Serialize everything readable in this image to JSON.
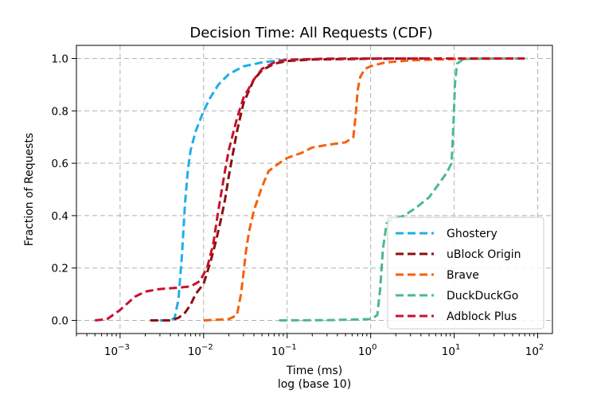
{
  "chart_data": {
    "type": "line",
    "title": "Decision Time: All Requests (CDF)",
    "xlabel": "Time (ms)",
    "xlabel_sub": "log (base 10)",
    "ylabel": "Fraction of Requests",
    "xscale": "log",
    "xlim": [
      0.0003,
      150
    ],
    "ylim": [
      -0.05,
      1.05
    ],
    "grid": true,
    "legend_position": "lower-right",
    "x_ticks": [
      {
        "value": 0.001,
        "base": "10",
        "exp": "−3"
      },
      {
        "value": 0.01,
        "base": "10",
        "exp": "−2"
      },
      {
        "value": 0.1,
        "base": "10",
        "exp": "−1"
      },
      {
        "value": 1,
        "base": "10",
        "exp": "0"
      },
      {
        "value": 10,
        "base": "10",
        "exp": "1"
      },
      {
        "value": 100,
        "base": "10",
        "exp": "2"
      }
    ],
    "y_ticks": [
      "0.0",
      "0.2",
      "0.4",
      "0.6",
      "0.8",
      "1.0"
    ],
    "series": [
      {
        "name": "Ghostery",
        "color": "#1eaee8",
        "points": [
          [
            0.003,
            0
          ],
          [
            0.004,
            0
          ],
          [
            0.0045,
            0.01
          ],
          [
            0.005,
            0.08
          ],
          [
            0.0055,
            0.25
          ],
          [
            0.006,
            0.45
          ],
          [
            0.0065,
            0.58
          ],
          [
            0.007,
            0.65
          ],
          [
            0.008,
            0.72
          ],
          [
            0.01,
            0.8
          ],
          [
            0.012,
            0.85
          ],
          [
            0.015,
            0.9
          ],
          [
            0.02,
            0.94
          ],
          [
            0.03,
            0.97
          ],
          [
            0.05,
            0.985
          ],
          [
            0.08,
            0.993
          ],
          [
            0.15,
            0.997
          ],
          [
            0.3,
            0.999
          ],
          [
            1,
            1
          ]
        ]
      },
      {
        "name": "uBlock Origin",
        "color": "#8b0f0f",
        "points": [
          [
            0.0023,
            0
          ],
          [
            0.004,
            0
          ],
          [
            0.005,
            0.01
          ],
          [
            0.006,
            0.03
          ],
          [
            0.007,
            0.06
          ],
          [
            0.008,
            0.1
          ],
          [
            0.01,
            0.14
          ],
          [
            0.012,
            0.22
          ],
          [
            0.014,
            0.3
          ],
          [
            0.016,
            0.38
          ],
          [
            0.018,
            0.46
          ],
          [
            0.02,
            0.55
          ],
          [
            0.025,
            0.72
          ],
          [
            0.03,
            0.83
          ],
          [
            0.04,
            0.92
          ],
          [
            0.05,
            0.955
          ],
          [
            0.07,
            0.98
          ],
          [
            0.1,
            0.99
          ],
          [
            0.2,
            0.996
          ],
          [
            1,
            0.999
          ],
          [
            5,
            1
          ]
        ]
      },
      {
        "name": "Brave",
        "color": "#f5600c",
        "points": [
          [
            0.01,
            0
          ],
          [
            0.015,
            0.003
          ],
          [
            0.02,
            0.005
          ],
          [
            0.025,
            0.02
          ],
          [
            0.028,
            0.1
          ],
          [
            0.03,
            0.18
          ],
          [
            0.032,
            0.26
          ],
          [
            0.035,
            0.34
          ],
          [
            0.04,
            0.42
          ],
          [
            0.05,
            0.51
          ],
          [
            0.06,
            0.57
          ],
          [
            0.08,
            0.6
          ],
          [
            0.1,
            0.62
          ],
          [
            0.15,
            0.64
          ],
          [
            0.2,
            0.66
          ],
          [
            0.3,
            0.67
          ],
          [
            0.5,
            0.68
          ],
          [
            0.62,
            0.7
          ],
          [
            0.66,
            0.78
          ],
          [
            0.7,
            0.88
          ],
          [
            0.75,
            0.93
          ],
          [
            0.85,
            0.96
          ],
          [
            1,
            0.97
          ],
          [
            1.5,
            0.985
          ],
          [
            3,
            0.993
          ],
          [
            10,
            0.998
          ],
          [
            50,
            1
          ]
        ]
      },
      {
        "name": "DuckDuckGo",
        "color": "#4bb891",
        "points": [
          [
            0.08,
            0
          ],
          [
            0.3,
            0.001
          ],
          [
            1,
            0.005
          ],
          [
            1.2,
            0.02
          ],
          [
            1.3,
            0.12
          ],
          [
            1.4,
            0.27
          ],
          [
            1.55,
            0.37
          ],
          [
            1.8,
            0.385
          ],
          [
            2.5,
            0.4
          ],
          [
            3.5,
            0.43
          ],
          [
            5,
            0.47
          ],
          [
            6.5,
            0.52
          ],
          [
            8,
            0.56
          ],
          [
            9.3,
            0.6
          ],
          [
            9.8,
            0.75
          ],
          [
            10.2,
            0.9
          ],
          [
            10.8,
            0.98
          ],
          [
            13,
            0.998
          ],
          [
            30,
            1
          ],
          [
            75,
            1
          ]
        ]
      },
      {
        "name": "Adblock Plus",
        "color": "#c8102e",
        "points": [
          [
            0.0005,
            0
          ],
          [
            0.0007,
            0.005
          ],
          [
            0.001,
            0.04
          ],
          [
            0.0015,
            0.09
          ],
          [
            0.002,
            0.11
          ],
          [
            0.003,
            0.12
          ],
          [
            0.005,
            0.125
          ],
          [
            0.007,
            0.13
          ],
          [
            0.009,
            0.15
          ],
          [
            0.011,
            0.2
          ],
          [
            0.013,
            0.29
          ],
          [
            0.015,
            0.42
          ],
          [
            0.018,
            0.57
          ],
          [
            0.02,
            0.65
          ],
          [
            0.025,
            0.77
          ],
          [
            0.03,
            0.85
          ],
          [
            0.04,
            0.92
          ],
          [
            0.05,
            0.96
          ],
          [
            0.07,
            0.985
          ],
          [
            0.1,
            0.995
          ],
          [
            0.3,
            0.999
          ],
          [
            1,
            1
          ],
          [
            70,
            1
          ]
        ]
      }
    ]
  }
}
